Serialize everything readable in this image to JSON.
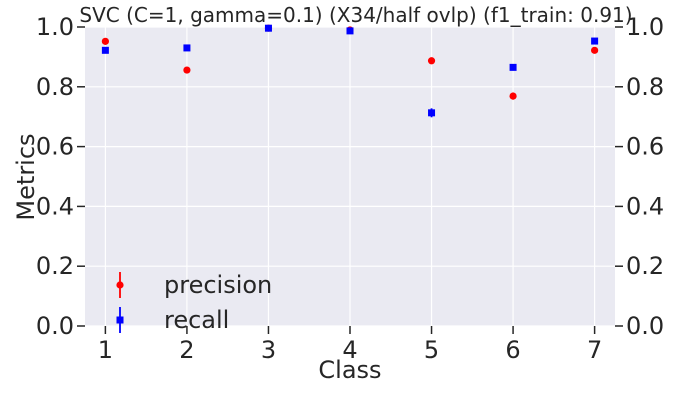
{
  "chart_data": {
    "type": "scatter",
    "title": "SVC (C=1, gamma=0.1) (X34/half ovlp) (f1_train: 0.91)",
    "xlabel": "Class",
    "ylabel": "Metrics",
    "xlim": [
      0.75,
      7.25
    ],
    "ylim": [
      0.0,
      1.0
    ],
    "x": [
      1,
      2,
      3,
      4,
      5,
      6,
      7
    ],
    "x_tick_labels": [
      "1",
      "2",
      "3",
      "4",
      "5",
      "6",
      "7"
    ],
    "y_tick_labels": [
      "0.0",
      "0.2",
      "0.4",
      "0.6",
      "0.8",
      "1.0"
    ],
    "y_tick_values": [
      0.0,
      0.2,
      0.4,
      0.6,
      0.8,
      1.0
    ],
    "grid": true,
    "secondary_y_axis": true,
    "legend_position": "lower-left",
    "series": [
      {
        "name": "precision",
        "marker": "circle",
        "color": "#ff0000",
        "values": [
          0.952,
          0.856,
          0.996,
          0.99,
          0.887,
          0.769,
          0.922
        ],
        "errors": [
          0.006,
          0.008,
          0.003,
          0.004,
          0.008,
          0.012,
          0.006
        ]
      },
      {
        "name": "recall",
        "marker": "square",
        "color": "#0000ff",
        "values": [
          0.922,
          0.93,
          0.996,
          0.987,
          0.713,
          0.865,
          0.953
        ],
        "errors": [
          0.007,
          0.008,
          0.003,
          0.004,
          0.015,
          0.01,
          0.006
        ]
      }
    ]
  }
}
